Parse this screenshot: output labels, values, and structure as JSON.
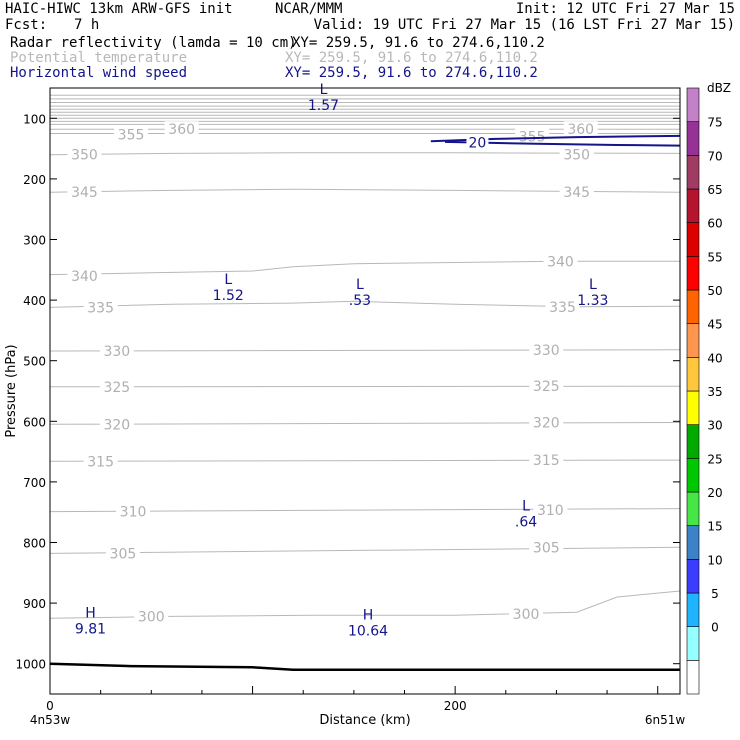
{
  "header": {
    "model": "HAIC-HIWC 13km ARW-GFS init",
    "org": "NCAR/MMM",
    "init": "Init: 12 UTC Fri 27 Mar 15",
    "fcst_label": "Fcst:",
    "fcst_value": "7 h",
    "valid": "Valid: 19 UTC Fri 27 Mar 15 (16 LST Fri 27 Mar 15)"
  },
  "fields": [
    {
      "name": "Radar reflectivity (lamda = 10 cm)",
      "xy": "XY= 259.5, 91.6 to 274.6,110.2",
      "color": "#000000"
    },
    {
      "name": "Potential temperature",
      "xy": "XY= 259.5, 91.6 to 274.6,110.2",
      "color": "#b8b8b8"
    },
    {
      "name": "Horizontal wind speed",
      "xy": "XY= 259.5, 91.6 to 274.6,110.2",
      "color": "#14148c"
    }
  ],
  "chart_data": {
    "type": "line",
    "title": "",
    "xlabel": "Distance (km)",
    "ylabel": "Pressure (hPa)",
    "xlim": [
      0,
      311
    ],
    "ylim": [
      1050,
      50
    ],
    "x_ticks": [
      0,
      200
    ],
    "y_ticks": [
      100,
      200,
      300,
      400,
      500,
      600,
      700,
      800,
      900,
      1000
    ],
    "x_end_labels": [
      "4n53w",
      "6n51w"
    ],
    "theta_contours": [
      {
        "value": 350,
        "x": [
          0,
          60,
          120,
          200,
          311
        ],
        "y": [
          160,
          158,
          157,
          157,
          158
        ]
      },
      {
        "value": 345,
        "x": [
          0,
          60,
          120,
          200,
          311
        ],
        "y": [
          222,
          219,
          217,
          219,
          222
        ]
      },
      {
        "value": 340,
        "x": [
          0,
          50,
          100,
          120,
          150,
          200,
          250,
          311
        ],
        "y": [
          358,
          355,
          352,
          345,
          340,
          338,
          336,
          336
        ]
      },
      {
        "value": 335,
        "x": [
          0,
          60,
          120,
          150,
          200,
          260,
          311
        ],
        "y": [
          412,
          407,
          405,
          402,
          407,
          411,
          410
        ]
      },
      {
        "value": 330,
        "x": [
          0,
          311
        ],
        "y": [
          484,
          482
        ]
      },
      {
        "value": 325,
        "x": [
          0,
          311
        ],
        "y": [
          543,
          542
        ]
      },
      {
        "value": 320,
        "x": [
          0,
          311
        ],
        "y": [
          605,
          602
        ]
      },
      {
        "value": 315,
        "x": [
          0,
          311
        ],
        "y": [
          666,
          664
        ]
      },
      {
        "value": 310,
        "x": [
          0,
          311
        ],
        "y": [
          749,
          744
        ]
      },
      {
        "value": 305,
        "x": [
          0,
          311
        ],
        "y": [
          818,
          808
        ]
      },
      {
        "value": 300,
        "x": [
          0,
          60,
          130,
          200,
          260,
          280,
          311
        ],
        "y": [
          925,
          922,
          920,
          920,
          915,
          890,
          880
        ]
      }
    ],
    "theta_top_levels": [
      62,
      68,
      74,
      80,
      85,
      90,
      95,
      100,
      105,
      110,
      118,
      125
    ],
    "theta_labels": [
      {
        "text": "355",
        "x": 40,
        "p": 127
      },
      {
        "text": "360",
        "x": 65,
        "p": 118
      },
      {
        "text": "355",
        "x": 238,
        "p": 130
      },
      {
        "text": "360",
        "x": 262,
        "p": 118
      },
      {
        "text": "350",
        "x": 17,
        "p": 160
      },
      {
        "text": "350",
        "x": 260,
        "p": 160
      },
      {
        "text": "345",
        "x": 17,
        "p": 222
      },
      {
        "text": "345",
        "x": 260,
        "p": 222
      },
      {
        "text": "340",
        "x": 17,
        "p": 360
      },
      {
        "text": "340",
        "x": 252,
        "p": 336
      },
      {
        "text": "335",
        "x": 25,
        "p": 412
      },
      {
        "text": "335",
        "x": 253,
        "p": 411
      },
      {
        "text": "330",
        "x": 33,
        "p": 484
      },
      {
        "text": "330",
        "x": 245,
        "p": 482
      },
      {
        "text": "325",
        "x": 33,
        "p": 543
      },
      {
        "text": "325",
        "x": 245,
        "p": 542
      },
      {
        "text": "320",
        "x": 33,
        "p": 605
      },
      {
        "text": "320",
        "x": 245,
        "p": 602
      },
      {
        "text": "315",
        "x": 25,
        "p": 666
      },
      {
        "text": "315",
        "x": 245,
        "p": 664
      },
      {
        "text": "310",
        "x": 41,
        "p": 749
      },
      {
        "text": "310",
        "x": 247,
        "p": 746
      },
      {
        "text": "305",
        "x": 36,
        "p": 818
      },
      {
        "text": "305",
        "x": 245,
        "p": 808
      },
      {
        "text": "300",
        "x": 50,
        "p": 922
      },
      {
        "text": "300",
        "x": 235,
        "p": 918
      }
    ],
    "wind_contours": [
      {
        "value": 20,
        "x": [
          188,
          220,
          260,
          311
        ],
        "y": [
          138,
          134,
          131,
          129
        ]
      },
      {
        "value": 20,
        "x": [
          195,
          240,
          280,
          311
        ],
        "y": [
          139,
          142,
          144,
          145
        ]
      }
    ],
    "wind_labels": [
      {
        "text": "20",
        "x": 211,
        "p": 140
      }
    ],
    "extrema": [
      {
        "type": "L",
        "value": "1.57",
        "x": 135,
        "p": 65
      },
      {
        "type": "L",
        "value": "1.52",
        "x": 88,
        "p": 378
      },
      {
        "type": "L",
        "value": ".53",
        "x": 153,
        "p": 387
      },
      {
        "type": "L",
        "value": "1.33",
        "x": 268,
        "p": 387
      },
      {
        "type": "L",
        "value": ".64",
        "x": 235,
        "p": 752
      },
      {
        "type": "H",
        "value": "9.81",
        "x": 20,
        "p": 929
      },
      {
        "type": "H",
        "value": "10.64",
        "x": 157,
        "p": 932
      }
    ],
    "terrain": {
      "x": [
        0,
        40,
        100,
        120,
        200,
        311
      ],
      "y": [
        1000,
        1004,
        1006,
        1010,
        1010,
        1010
      ]
    },
    "colorbar": {
      "unit": "dBZ",
      "colors": [
        "#ffffff",
        "#96ffff",
        "#1eb4ff",
        "#3c3cff",
        "#3c82c8",
        "#46e646",
        "#00c800",
        "#00aa00",
        "#ffff00",
        "#ffc83c",
        "#ff9650",
        "#ff6400",
        "#ff0000",
        "#dc0000",
        "#b4142d",
        "#a03c64",
        "#963296",
        "#c382c8"
      ],
      "labels": [
        "0",
        "5",
        "10",
        "15",
        "20",
        "25",
        "30",
        "35",
        "40",
        "45",
        "50",
        "55",
        "60",
        "65",
        "70",
        "75"
      ]
    }
  }
}
